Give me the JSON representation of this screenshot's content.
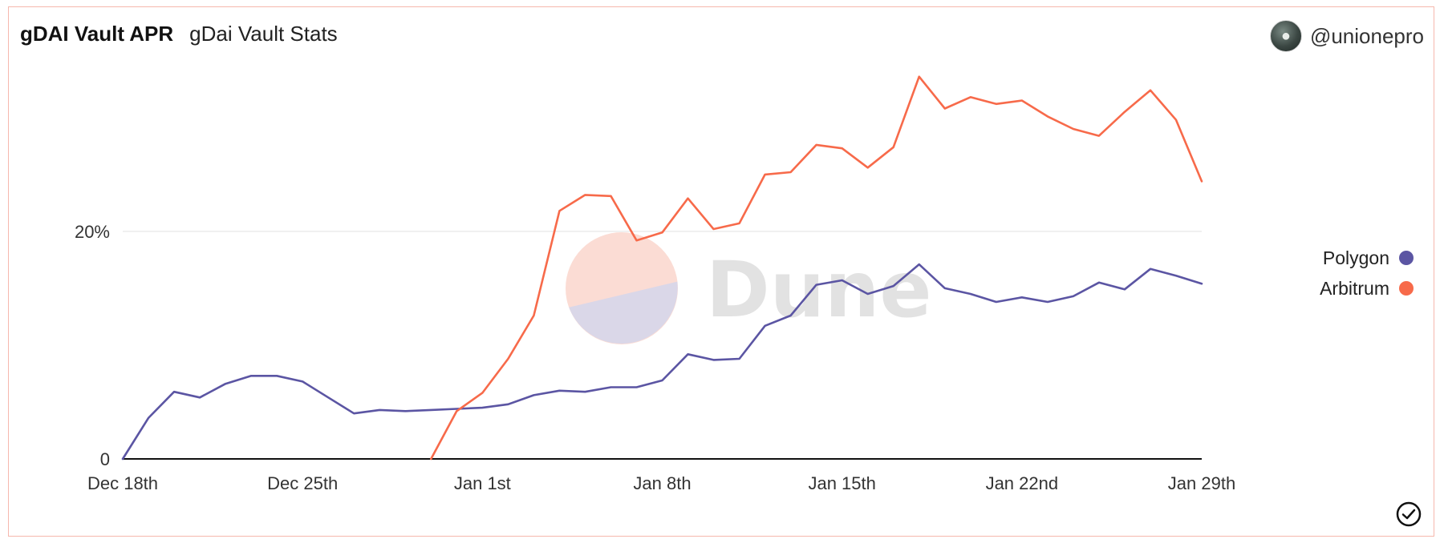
{
  "header": {
    "title": "gDAI Vault APR",
    "subtitle": "gDai Vault Stats",
    "username": "@unionepro"
  },
  "watermark": "Dune",
  "icons": {
    "avatar": "user-avatar-icon",
    "check": "check-circle-icon"
  },
  "colors": {
    "polygon": "#5b55a3",
    "arbitrum": "#f76a4a",
    "grid": "#ececec",
    "axis": "#111111"
  },
  "chart_data": {
    "type": "line",
    "title": "",
    "xlabel": "",
    "ylabel": "",
    "x": [
      "2022-12-18",
      "2022-12-19",
      "2022-12-20",
      "2022-12-21",
      "2022-12-22",
      "2022-12-23",
      "2022-12-24",
      "2022-12-25",
      "2022-12-26",
      "2022-12-27",
      "2022-12-28",
      "2022-12-29",
      "2022-12-30",
      "2022-12-31",
      "2023-01-01",
      "2023-01-02",
      "2023-01-03",
      "2023-01-04",
      "2023-01-05",
      "2023-01-06",
      "2023-01-07",
      "2023-01-08",
      "2023-01-09",
      "2023-01-10",
      "2023-01-11",
      "2023-01-12",
      "2023-01-13",
      "2023-01-14",
      "2023-01-15",
      "2023-01-16",
      "2023-01-17",
      "2023-01-18",
      "2023-01-19",
      "2023-01-20",
      "2023-01-21",
      "2023-01-22",
      "2023-01-23",
      "2023-01-24",
      "2023-01-25",
      "2023-01-26",
      "2023-01-27",
      "2023-01-28",
      "2023-01-29"
    ],
    "x_tick_labels": [
      "Dec 18th",
      "Dec 25th",
      "Jan 1st",
      "Jan 8th",
      "Jan 15th",
      "Jan 22nd",
      "Jan 29th"
    ],
    "x_tick_indices": [
      0,
      7,
      14,
      21,
      28,
      35,
      42
    ],
    "y_ticks": [
      0,
      20
    ],
    "y_tick_labels": [
      "0",
      "20%"
    ],
    "ylim": [
      0,
      34
    ],
    "grid": "horizontal",
    "legend": "right",
    "series": [
      {
        "name": "Polygon",
        "color": "#5b55a3",
        "values": [
          0,
          3.6,
          5.9,
          5.4,
          6.6,
          7.3,
          7.3,
          6.8,
          5.4,
          4.0,
          4.3,
          4.2,
          4.3,
          4.4,
          4.5,
          4.8,
          5.6,
          6.0,
          5.9,
          6.3,
          6.3,
          6.9,
          9.2,
          8.7,
          8.8,
          11.7,
          12.6,
          15.3,
          15.7,
          14.5,
          15.2,
          17.1,
          15.0,
          14.5,
          13.8,
          14.2,
          13.8,
          14.3,
          15.5,
          14.9,
          16.7,
          16.1,
          15.4
        ]
      },
      {
        "name": "Arbitrum",
        "color": "#f76a4a",
        "values": [
          null,
          null,
          null,
          null,
          null,
          null,
          null,
          null,
          null,
          null,
          null,
          null,
          0,
          4.2,
          5.8,
          8.8,
          12.6,
          21.8,
          23.2,
          23.1,
          19.2,
          19.9,
          22.9,
          20.2,
          20.7,
          25.0,
          25.2,
          27.6,
          27.3,
          25.6,
          27.4,
          33.6,
          30.8,
          31.8,
          31.2,
          31.5,
          30.1,
          29.0,
          28.4,
          30.5,
          32.4,
          29.8,
          24.4
        ]
      }
    ]
  }
}
